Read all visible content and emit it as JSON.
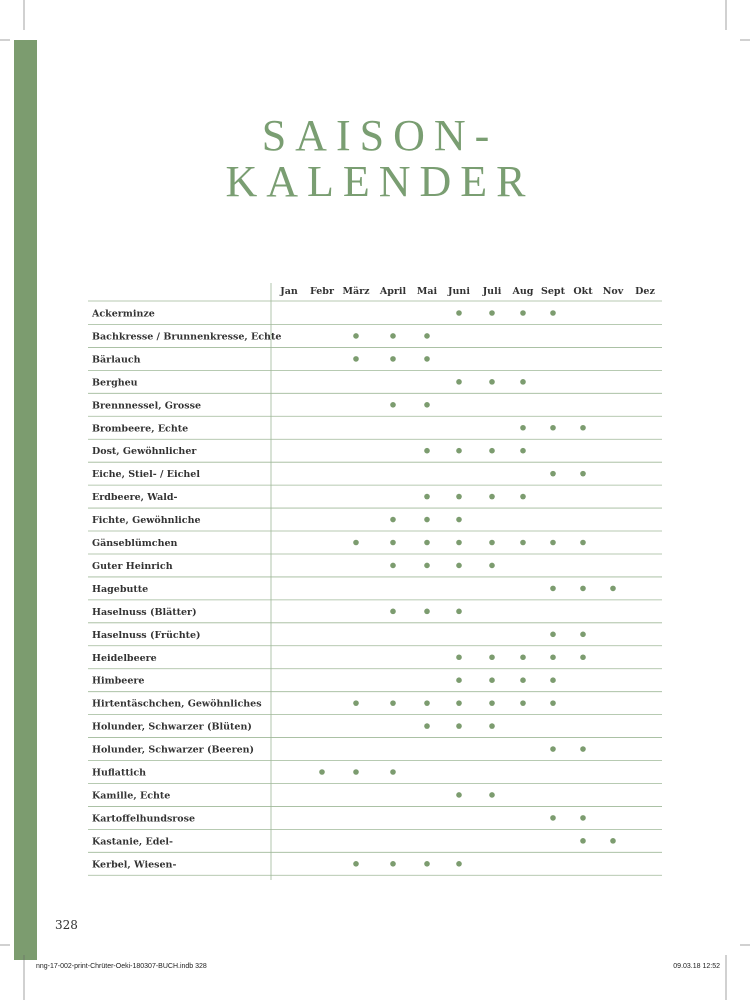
{
  "title": {
    "lines": [
      "SAISON-",
      "KALENDER"
    ]
  },
  "table": {
    "months": [
      "Jan",
      "Febr",
      "März",
      "April",
      "Mai",
      "Juni",
      "Juli",
      "Aug",
      "Sept",
      "Okt",
      "Nov",
      "Dez"
    ],
    "rows": [
      {
        "name": "Ackerminze",
        "dots": [
          5,
          6,
          7,
          8
        ]
      },
      {
        "name": "Bachkresse / Brunnenkresse, Echte",
        "dots": [
          2,
          3,
          4
        ]
      },
      {
        "name": "Bärlauch",
        "dots": [
          2,
          3,
          4
        ]
      },
      {
        "name": "Bergheu",
        "dots": [
          5,
          6,
          7
        ]
      },
      {
        "name": "Brennnessel, Grosse",
        "dots": [
          3,
          4
        ]
      },
      {
        "name": "Brombeere, Echte",
        "dots": [
          7,
          8,
          9
        ]
      },
      {
        "name": "Dost, Gewöhnlicher",
        "dots": [
          4,
          5,
          6,
          7
        ]
      },
      {
        "name": "Eiche, Stiel- / Eichel",
        "dots": [
          8,
          9
        ]
      },
      {
        "name": "Erdbeere, Wald-",
        "dots": [
          4,
          5,
          6,
          7
        ]
      },
      {
        "name": "Fichte, Gewöhnliche",
        "dots": [
          3,
          4,
          5
        ]
      },
      {
        "name": "Gänseblümchen",
        "dots": [
          2,
          3,
          4,
          5,
          6,
          7,
          8,
          9
        ]
      },
      {
        "name": "Guter Heinrich",
        "dots": [
          3,
          4,
          5,
          6
        ]
      },
      {
        "name": "Hagebutte",
        "dots": [
          8,
          9,
          10
        ]
      },
      {
        "name": "Haselnuss (Blätter)",
        "dots": [
          3,
          4,
          5
        ]
      },
      {
        "name": "Haselnuss (Früchte)",
        "dots": [
          8,
          9
        ]
      },
      {
        "name": "Heidelbeere",
        "dots": [
          5,
          6,
          7,
          8,
          9
        ]
      },
      {
        "name": "Himbeere",
        "dots": [
          5,
          6,
          7,
          8
        ]
      },
      {
        "name": "Hirtentäschchen, Gewöhnliches",
        "dots": [
          2,
          3,
          4,
          5,
          6,
          7,
          8
        ]
      },
      {
        "name": "Holunder, Schwarzer (Blüten)",
        "dots": [
          4,
          5,
          6
        ]
      },
      {
        "name": "Holunder, Schwarzer (Beeren)",
        "dots": [
          8,
          9
        ]
      },
      {
        "name": "Huflattich",
        "dots": [
          1,
          2,
          3
        ]
      },
      {
        "name": "Kamille, Echte",
        "dots": [
          5,
          6
        ]
      },
      {
        "name": "Kartoffelhundsrose",
        "dots": [
          8,
          9
        ]
      },
      {
        "name": "Kastanie, Edel-",
        "dots": [
          9,
          10
        ]
      },
      {
        "name": "Kerbel, Wiesen-",
        "dots": [
          2,
          3,
          4,
          5
        ]
      }
    ]
  },
  "page_number": "328",
  "footer": {
    "file": "nng-17-002-print-Chrüter-Oeki-180307-BUCH.indb   328",
    "date": "09.03.18   12:52"
  }
}
